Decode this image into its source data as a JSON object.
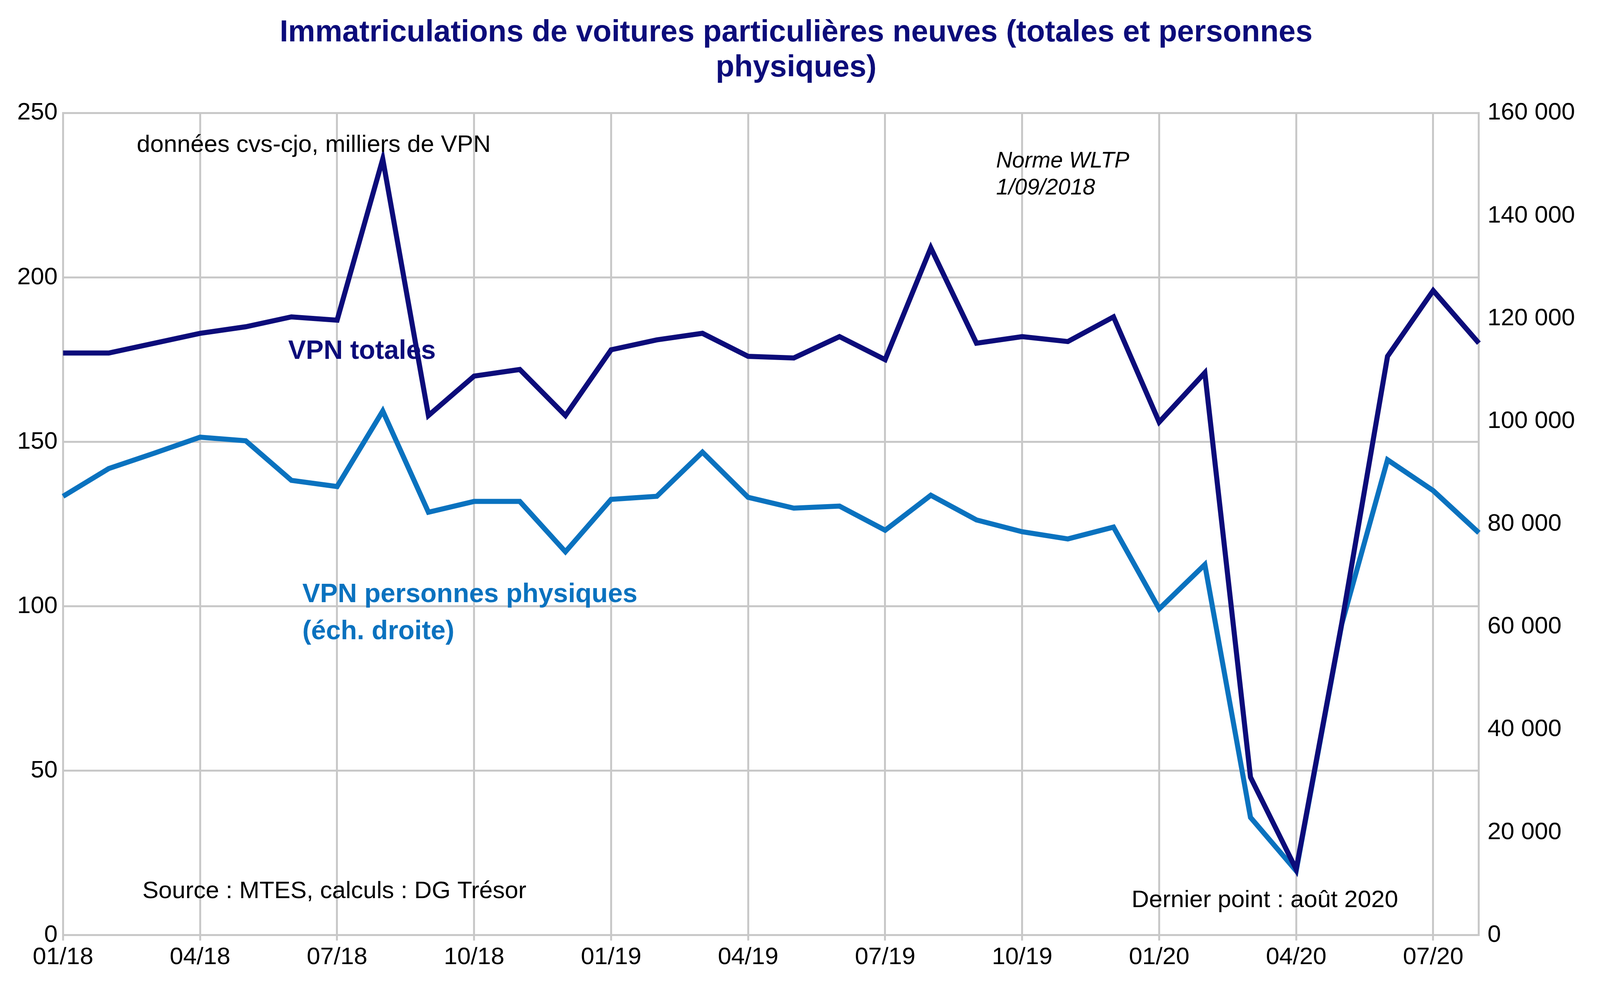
{
  "chart_data": {
    "type": "line",
    "title": "Immatriculations de voitures particulières neuves (totales et personnes physiques)",
    "categories": [
      "01/18",
      null,
      null,
      "04/18",
      null,
      null,
      "07/18",
      null,
      null,
      "10/18",
      null,
      null,
      "01/19",
      null,
      null,
      "04/19",
      null,
      null,
      "07/19",
      null,
      null,
      "10/19",
      null,
      null,
      "01/20",
      null,
      null,
      "04/20",
      null,
      null,
      "07/20",
      null
    ],
    "series": [
      {
        "name": "VPN totales",
        "color": "#0c0c7a",
        "values": [
          177,
          177,
          180,
          183,
          185,
          188,
          187,
          236,
          158,
          170,
          172,
          158,
          178,
          181,
          183,
          176,
          175.5,
          182,
          175,
          209,
          180,
          182,
          180.5,
          188,
          156,
          171,
          48,
          20,
          95,
          176,
          196,
          180
        ]
      },
      {
        "name": "VPN personnes physiques (éch. droite)",
        "color": "#0a72bf",
        "axis": "y2",
        "values": [
          85400,
          90800,
          93800,
          96900,
          96200,
          88500,
          87300,
          102000,
          82300,
          84400,
          84400,
          74600,
          84800,
          85400,
          94000,
          85200,
          83100,
          83500,
          78800,
          85600,
          80800,
          78500,
          77100,
          79400,
          63500,
          72100,
          22900,
          12500,
          60600,
          92500,
          86500,
          78300
        ]
      }
    ],
    "ylim": [
      0,
      250
    ],
    "yticks": [
      0,
      50,
      100,
      150,
      200,
      250
    ],
    "y2lim": [
      0,
      160000
    ],
    "y2ticks": [
      0,
      {
        "value": 20000,
        "label": "20 000"
      },
      {
        "value": 40000,
        "label": "40 000"
      },
      {
        "value": 60000,
        "label": "60 000"
      },
      {
        "value": 80000,
        "label": "80 000"
      },
      {
        "value": 100000,
        "label": "100 000"
      },
      {
        "value": 120000,
        "label": "120 000"
      },
      {
        "value": 140000,
        "label": "140 000"
      },
      {
        "value": 160000,
        "label": "160 000"
      }
    ],
    "grid": true,
    "legend": "none",
    "annotations": [
      "données cvs-cjo, milliers de VPN",
      "Norme WLTP\n1/09/2018",
      "Source : MTES, calculs : DG Trésor",
      "Dernier point : août 2020"
    ]
  }
}
